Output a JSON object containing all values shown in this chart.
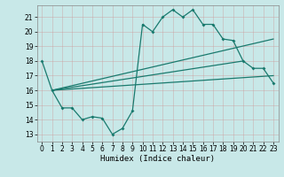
{
  "title": "",
  "xlabel": "Humidex (Indice chaleur)",
  "bg_color": "#c8e8e8",
  "grid_color": "#b0cccc",
  "line_color": "#1a7a6e",
  "xlim": [
    -0.5,
    23.5
  ],
  "ylim": [
    12.5,
    21.8
  ],
  "yticks": [
    13,
    14,
    15,
    16,
    17,
    18,
    19,
    20,
    21
  ],
  "xticks": [
    0,
    1,
    2,
    3,
    4,
    5,
    6,
    7,
    8,
    9,
    10,
    11,
    12,
    13,
    14,
    15,
    16,
    17,
    18,
    19,
    20,
    21,
    22,
    23
  ],
  "main_x": [
    0,
    1,
    2,
    3,
    4,
    5,
    6,
    7,
    8,
    9,
    10,
    11,
    12,
    13,
    14,
    15,
    16,
    17,
    18,
    19,
    20,
    21,
    22,
    23
  ],
  "main_y": [
    18,
    16,
    14.8,
    14.8,
    14.0,
    14.2,
    14.1,
    13.0,
    13.4,
    14.6,
    20.5,
    20.0,
    21.0,
    21.5,
    21.0,
    21.5,
    20.5,
    20.5,
    19.5,
    19.4,
    18.0,
    17.5,
    17.5,
    16.5
  ],
  "trend1_x": [
    1,
    23
  ],
  "trend1_y": [
    16,
    19.5
  ],
  "trend2_x": [
    1,
    23
  ],
  "trend2_y": [
    16,
    17.0
  ],
  "trend3_x": [
    1,
    20
  ],
  "trend3_y": [
    16,
    18.0
  ]
}
